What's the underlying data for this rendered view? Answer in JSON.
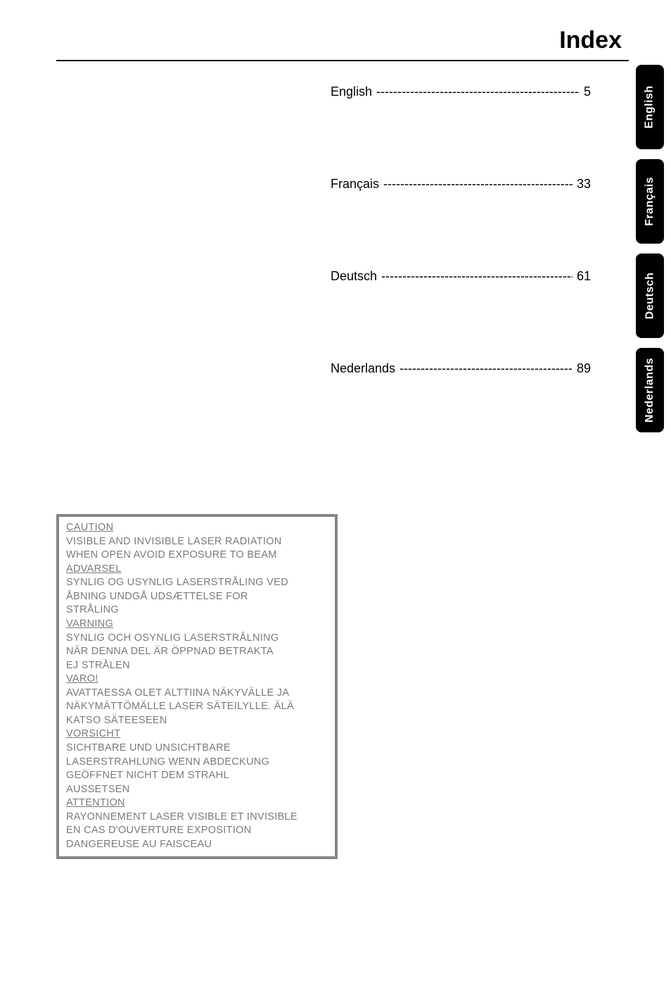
{
  "title": "Index",
  "toc": [
    {
      "label": "English",
      "page": "5"
    },
    {
      "label": "Français",
      "page": "33"
    },
    {
      "label": "Deutsch",
      "page": "61"
    },
    {
      "label": "Nederlands",
      "page": "89"
    }
  ],
  "tabs": [
    {
      "label": "English",
      "bg": "#000000"
    },
    {
      "label": "Français",
      "bg": "#000000"
    },
    {
      "label": "Deutsch",
      "bg": "#000000"
    },
    {
      "label": "Nederlands",
      "bg": "#000000"
    }
  ],
  "caution": {
    "border_color": "#858585",
    "text_color": "#7a7a7a",
    "sections": [
      {
        "heading": "CAUTION",
        "lines": [
          "VISIBLE AND INVISIBLE LASER RADIATION",
          "WHEN OPEN AVOID EXPOSURE TO BEAM"
        ]
      },
      {
        "heading": "ADVARSEL",
        "lines": [
          "SYNLIG OG USYNLIG LASERSTRÅLING VED",
          "ÅBNING UNDGÅ UDSÆTTELSE FOR",
          "STRÅLING"
        ]
      },
      {
        "heading": "VARNING",
        "lines": [
          "SYNLIG OCH OSYNLIG LASERSTRÅLNING",
          "NÄR DENNA DEL ÄR ÖPPNAD BETRAKTA",
          "EJ STRÅLEN"
        ]
      },
      {
        "heading": "VARO!",
        "lines": [
          "AVATTAESSA OLET ALTTIINA NÄKYVÄLLE JA",
          "NÄKYMÄTTÖMÄLLE LASER SÄTEILYLLE. ÄLÄ",
          "KATSO SÄTEESEEN"
        ]
      },
      {
        "heading": "VORSICHT",
        "lines": [
          "SICHTBARE UND UNSICHTBARE",
          "LASERSTRAHLUNG WENN ABDECKUNG",
          "GEÖFFNET NICHT DEM STRAHL",
          "AUSSETSEN"
        ]
      },
      {
        "heading": "ATTENTION",
        "lines": [
          "RAYONNEMENT LASER VISIBLE ET INVISIBLE",
          "EN CAS D'OUVERTURE EXPOSITION",
          "DANGEREUSE AU FAISCEAU"
        ]
      }
    ]
  }
}
